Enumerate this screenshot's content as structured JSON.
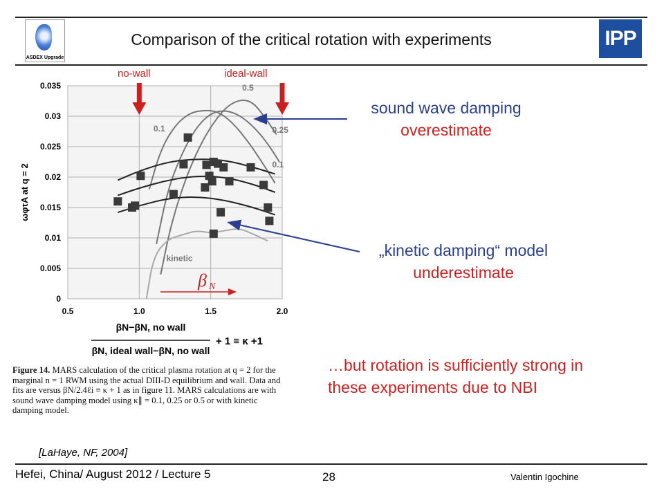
{
  "header": {
    "title": "Comparison of the critical rotation with experiments",
    "logo_left_text": "ASDEX Upgrade",
    "logo_right_text": "IPP"
  },
  "markers": {
    "no_wall": "no-wall",
    "ideal_wall": "ideal-wall"
  },
  "annotations": {
    "sound_line1": "sound wave damping",
    "sound_line2": "overestimate",
    "kinetic_line1": "„kinetic damping“ model",
    "kinetic_line2": "underestimate",
    "rotation_line1": "…but rotation is sufficiently strong in",
    "rotation_line2": "these experiments due to NBI"
  },
  "figure": {
    "caption_label": "Figure 14.",
    "caption_text": "MARS calculation of the critical plasma rotation at q = 2 for the marginal n = 1 RWM using the actual DIII-D equilibrium and wall. Data and fits are versus βN/2.4ℓi ≡ κ + 1 as in figure 11. MARS calculations are with sound wave damping model using κ∥ = 0.1, 0.25 or 0.5 or with kinetic damping model.",
    "reference": "[LaHaye, NF, 2004]",
    "beta_symbol": "β",
    "beta_sub": "N"
  },
  "chart_data": {
    "type": "scatter",
    "title": "",
    "ylabel": "ωφτA at q = 2",
    "xlabel": "βN − βN, no wall / βN, ideal wall − βN, no wall + 1 ≡ κ +1",
    "xlim": [
      0.5,
      2.0
    ],
    "ylim": [
      0,
      0.035
    ],
    "x_ticks": [
      "0.5",
      "1.0",
      "1.5",
      "2.0"
    ],
    "y_ticks": [
      "0",
      "0.005",
      "0.01",
      "0.015",
      "0.02",
      "0.025",
      "0.03",
      "0.035"
    ],
    "grid": true,
    "points": [
      {
        "x": 0.85,
        "y": 0.016
      },
      {
        "x": 0.95,
        "y": 0.015
      },
      {
        "x": 0.97,
        "y": 0.0153
      },
      {
        "x": 1.01,
        "y": 0.0202
      },
      {
        "x": 1.24,
        "y": 0.0172
      },
      {
        "x": 1.31,
        "y": 0.0221
      },
      {
        "x": 1.34,
        "y": 0.0265
      },
      {
        "x": 1.47,
        "y": 0.022
      },
      {
        "x": 1.49,
        "y": 0.0202
      },
      {
        "x": 1.46,
        "y": 0.0183
      },
      {
        "x": 1.51,
        "y": 0.0193
      },
      {
        "x": 1.52,
        "y": 0.0225
      },
      {
        "x": 1.55,
        "y": 0.0222
      },
      {
        "x": 1.59,
        "y": 0.0216
      },
      {
        "x": 1.63,
        "y": 0.0193
      },
      {
        "x": 1.57,
        "y": 0.0142
      },
      {
        "x": 1.52,
        "y": 0.0107
      },
      {
        "x": 1.78,
        "y": 0.0216
      },
      {
        "x": 1.87,
        "y": 0.0187
      },
      {
        "x": 1.9,
        "y": 0.015
      },
      {
        "x": 1.91,
        "y": 0.0128
      }
    ],
    "fits": [
      {
        "x": [
          0.85,
          1.0,
          1.2,
          1.4,
          1.6,
          1.8,
          1.95
        ],
        "y": [
          0.0195,
          0.021,
          0.0225,
          0.023,
          0.0228,
          0.0216,
          0.0205
        ]
      },
      {
        "x": [
          0.85,
          1.0,
          1.2,
          1.4,
          1.6,
          1.8,
          1.95
        ],
        "y": [
          0.017,
          0.0182,
          0.0195,
          0.0202,
          0.02,
          0.0188,
          0.0175
        ]
      },
      {
        "x": [
          0.85,
          1.0,
          1.2,
          1.4,
          1.6,
          1.8,
          1.95
        ],
        "y": [
          0.0142,
          0.0153,
          0.0165,
          0.0168,
          0.0162,
          0.015,
          0.0138
        ]
      }
    ],
    "model_curves": [
      {
        "name": "0.1",
        "x": [
          1.07,
          1.15,
          1.25,
          1.35,
          1.45,
          1.55,
          1.65,
          1.75,
          1.85,
          1.95
        ],
        "y": [
          0.018,
          0.0245,
          0.0285,
          0.0305,
          0.031,
          0.0308,
          0.029,
          0.0262,
          0.0228,
          0.019
        ]
      },
      {
        "name": "0.25",
        "x": [
          1.12,
          1.2,
          1.3,
          1.4,
          1.5,
          1.6,
          1.7,
          1.8,
          1.9,
          1.98
        ],
        "y": [
          0.009,
          0.018,
          0.024,
          0.0282,
          0.0305,
          0.031,
          0.0302,
          0.0283,
          0.0255,
          0.0225
        ]
      },
      {
        "name": "0.5",
        "x": [
          1.15,
          1.22,
          1.32,
          1.42,
          1.52,
          1.62,
          1.72,
          1.8,
          1.88,
          1.96
        ],
        "y": [
          0.004,
          0.012,
          0.0195,
          0.025,
          0.029,
          0.0318,
          0.0328,
          0.0322,
          0.0298,
          0.027
        ]
      },
      {
        "name": "kinetic",
        "x": [
          1.05,
          1.1,
          1.2,
          1.3,
          1.4,
          1.5,
          1.6,
          1.7,
          1.8,
          1.9
        ],
        "y": [
          0.0,
          0.007,
          0.0098,
          0.0105,
          0.0112,
          0.0108,
          0.0112,
          0.0116,
          0.0106,
          0.0095
        ]
      }
    ],
    "curve_labels": [
      "0.5",
      "0.25",
      "0.1",
      "0.1",
      "kinetic"
    ]
  },
  "footer": {
    "left": "Hefei, China/ August 2012 / Lecture 5",
    "page": "28",
    "right": "Valentin Igochine"
  }
}
